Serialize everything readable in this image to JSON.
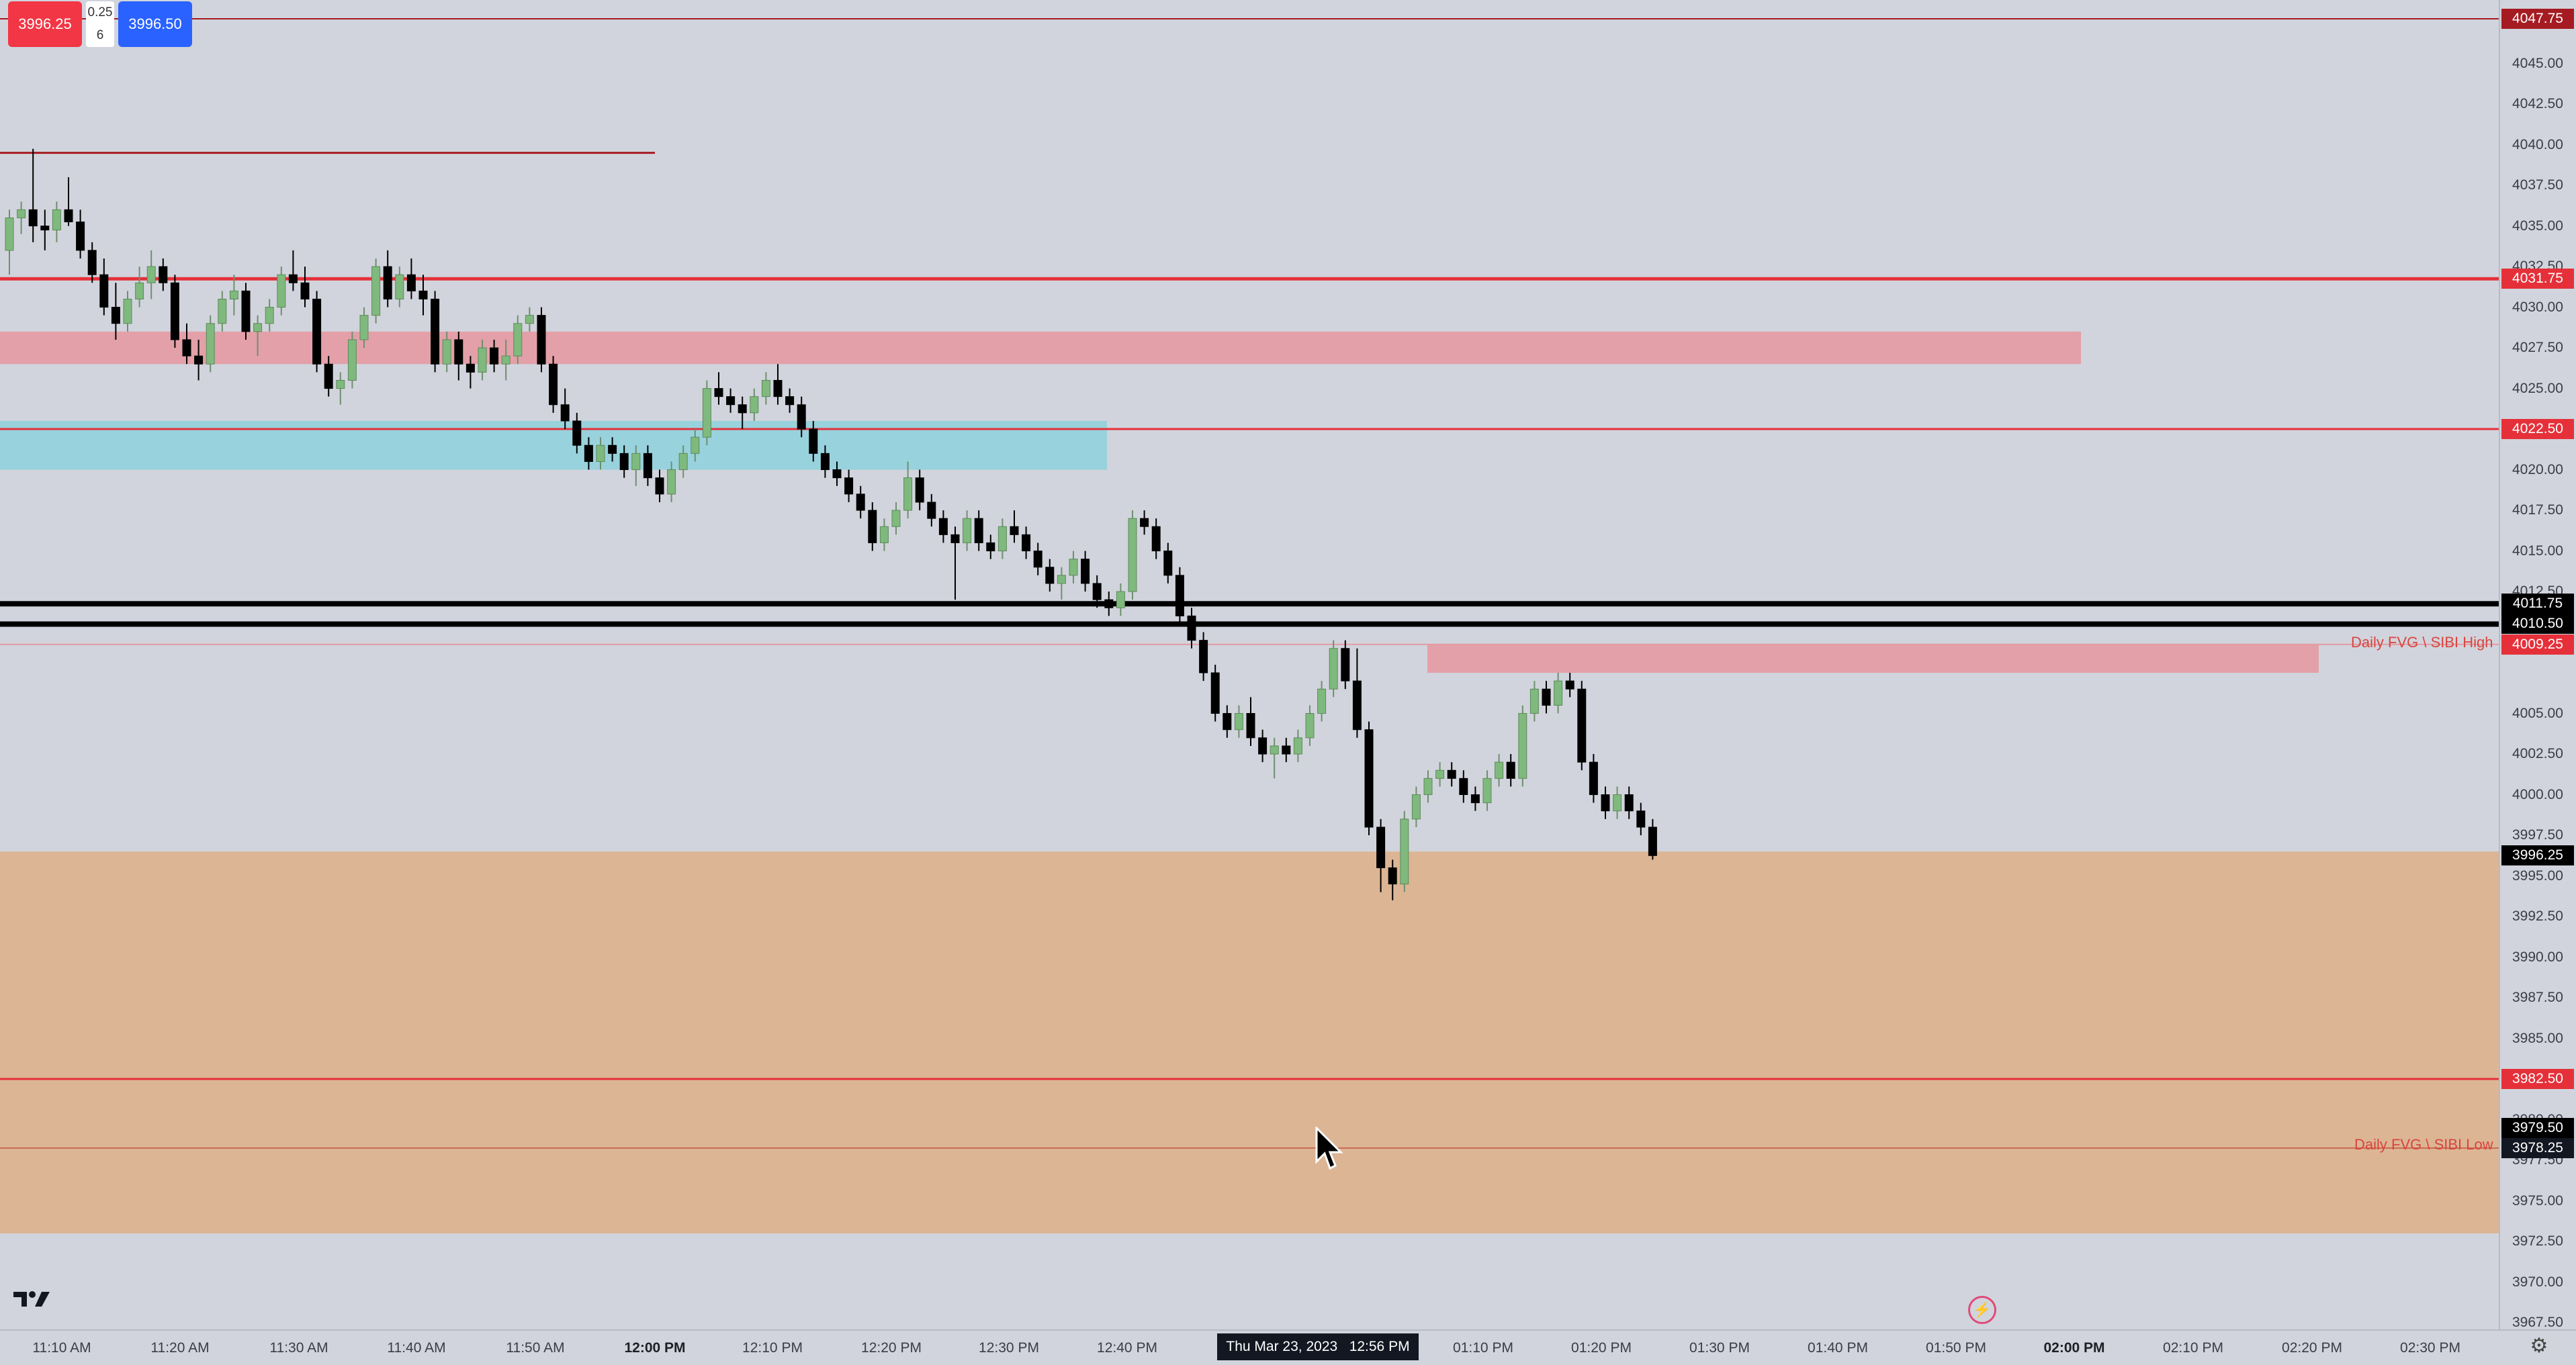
{
  "toolbar": {
    "sell_price": "3996.25",
    "buy_price": "3996.50",
    "spread_top": "0.25",
    "spread_bottom": "6"
  },
  "price_axis": {
    "ticks": [
      "4045.00",
      "4042.50",
      "4040.00",
      "4037.50",
      "4035.00",
      "4032.50",
      "4030.00",
      "4027.50",
      "4025.00",
      "4020.00",
      "4017.50",
      "4015.00",
      "4012.50",
      "4005.00",
      "4002.50",
      "4000.00",
      "3997.50",
      "3995.00",
      "3992.50",
      "3990.00",
      "3987.50",
      "3985.00",
      "3980.00",
      "3977.50",
      "3975.00",
      "3972.50",
      "3970.00",
      "3967.50"
    ],
    "labels": [
      {
        "text": "4047.75",
        "color": "#a61b22"
      },
      {
        "text": "4031.75",
        "color": "#e5303a"
      },
      {
        "text": "4022.50",
        "color": "#e5303a"
      },
      {
        "text": "4011.75",
        "color": "#000000"
      },
      {
        "text": "4010.50",
        "color": "#000000"
      },
      {
        "text": "4009.25",
        "color": "#e5303a"
      },
      {
        "text": "3996.25",
        "color": "#000000"
      },
      {
        "text": "3982.50",
        "color": "#e5303a"
      },
      {
        "text": "3979.50",
        "color": "#000000"
      },
      {
        "text": "3978.25",
        "color": "#131722"
      }
    ]
  },
  "time_axis": {
    "ticks": [
      {
        "text": "11:10 AM",
        "bold": false
      },
      {
        "text": "11:20 AM",
        "bold": false
      },
      {
        "text": "11:30 AM",
        "bold": false
      },
      {
        "text": "11:40 AM",
        "bold": false
      },
      {
        "text": "11:50 AM",
        "bold": false
      },
      {
        "text": "12:00 PM",
        "bold": true
      },
      {
        "text": "12:10 PM",
        "bold": false
      },
      {
        "text": "12:20 PM",
        "bold": false
      },
      {
        "text": "12:30 PM",
        "bold": false
      },
      {
        "text": "12:40 PM",
        "bold": false
      },
      {
        "text": "01:10 PM",
        "bold": false
      },
      {
        "text": "01:20 PM",
        "bold": false
      },
      {
        "text": "01:30 PM",
        "bold": false
      },
      {
        "text": "01:40 PM",
        "bold": false
      },
      {
        "text": "01:50 PM",
        "bold": false
      },
      {
        "text": "02:00 PM",
        "bold": true
      },
      {
        "text": "02:10 PM",
        "bold": false
      },
      {
        "text": "02:20 PM",
        "bold": false
      },
      {
        "text": "02:30 PM",
        "bold": false
      }
    ],
    "crosshair_date": "Thu Mar 23, 2023",
    "crosshair_time": "12:56 PM"
  },
  "annotations": {
    "fvg_high": "Daily FVG \\ SIBI High",
    "fvg_low": "Daily FVG \\ SIBI Low"
  },
  "colors": {
    "background": "#d1d4dc",
    "bull_candle": "#7fb97d",
    "bear_candle": "#000000",
    "red_zone": "#e3a0a8",
    "blue_zone": "#8ed1dc",
    "orange_zone": "#dcb594",
    "red_line": "#e5303a"
  },
  "icons": {
    "logo": "tradingview-logo-icon",
    "lightning": "lightning-icon",
    "settings": "settings-gear-icon",
    "cursor": "mouse-pointer-icon"
  },
  "chart_data": {
    "type": "candlestick",
    "symbol_price_scale": "ES futures 1-minute",
    "ylim": [
      3967.5,
      4047.75
    ],
    "candles": [
      [
        4033.5,
        4036.0,
        4032.0,
        4035.5
      ],
      [
        4035.5,
        4036.5,
        4034.5,
        4036.0
      ],
      [
        4036.0,
        4039.75,
        4034.0,
        4035.0
      ],
      [
        4035.0,
        4036.0,
        4033.5,
        4034.75
      ],
      [
        4034.75,
        4036.5,
        4034.0,
        4036.0
      ],
      [
        4036.0,
        4038.0,
        4035.0,
        4035.25
      ],
      [
        4035.25,
        4036.0,
        4033.0,
        4033.5
      ],
      [
        4033.5,
        4034.0,
        4031.5,
        4032.0
      ],
      [
        4032.0,
        4033.0,
        4029.5,
        4030.0
      ],
      [
        4030.0,
        4031.5,
        4028.0,
        4029.0
      ],
      [
        4029.0,
        4031.0,
        4028.5,
        4030.5
      ],
      [
        4030.5,
        4032.5,
        4030.0,
        4031.5
      ],
      [
        4031.5,
        4033.5,
        4030.5,
        4032.5
      ],
      [
        4032.5,
        4033.0,
        4031.0,
        4031.5
      ],
      [
        4031.5,
        4032.0,
        4027.5,
        4028.0
      ],
      [
        4028.0,
        4029.0,
        4026.5,
        4027.0
      ],
      [
        4027.0,
        4028.0,
        4025.5,
        4026.5
      ],
      [
        4026.5,
        4029.5,
        4026.0,
        4029.0
      ],
      [
        4029.0,
        4031.0,
        4028.5,
        4030.5
      ],
      [
        4030.5,
        4032.0,
        4029.5,
        4031.0
      ],
      [
        4031.0,
        4031.5,
        4028.0,
        4028.5
      ],
      [
        4028.5,
        4029.5,
        4027.0,
        4029.0
      ],
      [
        4029.0,
        4030.5,
        4028.5,
        4030.0
      ],
      [
        4030.0,
        4032.5,
        4029.5,
        4032.0
      ],
      [
        4032.0,
        4033.5,
        4031.0,
        4031.5
      ],
      [
        4031.5,
        4032.5,
        4030.0,
        4030.5
      ],
      [
        4030.5,
        4031.0,
        4026.0,
        4026.5
      ],
      [
        4026.5,
        4027.0,
        4024.5,
        4025.0
      ],
      [
        4025.0,
        4026.0,
        4024.0,
        4025.5
      ],
      [
        4025.5,
        4028.5,
        4025.0,
        4028.0
      ],
      [
        4028.0,
        4030.0,
        4027.5,
        4029.5
      ],
      [
        4029.5,
        4033.0,
        4029.0,
        4032.5
      ],
      [
        4032.5,
        4033.5,
        4030.0,
        4030.5
      ],
      [
        4030.5,
        4032.5,
        4030.0,
        4032.0
      ],
      [
        4032.0,
        4033.0,
        4030.5,
        4031.0
      ],
      [
        4031.0,
        4032.0,
        4029.5,
        4030.5
      ],
      [
        4030.5,
        4031.0,
        4026.0,
        4026.5
      ],
      [
        4026.5,
        4028.5,
        4026.0,
        4028.0
      ],
      [
        4028.0,
        4028.5,
        4025.5,
        4026.5
      ],
      [
        4026.5,
        4027.0,
        4025.0,
        4026.0
      ],
      [
        4026.0,
        4028.0,
        4025.5,
        4027.5
      ],
      [
        4027.5,
        4028.0,
        4026.0,
        4026.5
      ],
      [
        4026.5,
        4028.0,
        4025.5,
        4027.0
      ],
      [
        4027.0,
        4029.5,
        4026.5,
        4029.0
      ],
      [
        4029.0,
        4030.0,
        4028.5,
        4029.5
      ],
      [
        4029.5,
        4030.0,
        4026.0,
        4026.5
      ],
      [
        4026.5,
        4027.0,
        4023.5,
        4024.0
      ],
      [
        4024.0,
        4025.0,
        4022.5,
        4023.0
      ],
      [
        4023.0,
        4023.5,
        4021.0,
        4021.5
      ],
      [
        4021.5,
        4022.0,
        4020.0,
        4020.5
      ],
      [
        4020.5,
        4022.0,
        4020.0,
        4021.5
      ],
      [
        4021.5,
        4022.0,
        4020.5,
        4021.0
      ],
      [
        4021.0,
        4021.5,
        4019.5,
        4020.0
      ],
      [
        4020.0,
        4021.5,
        4019.0,
        4021.0
      ],
      [
        4021.0,
        4021.5,
        4019.0,
        4019.5
      ],
      [
        4019.5,
        4020.0,
        4018.0,
        4018.5
      ],
      [
        4018.5,
        4020.5,
        4018.0,
        4020.0
      ],
      [
        4020.0,
        4021.5,
        4019.5,
        4021.0
      ],
      [
        4021.0,
        4022.5,
        4020.5,
        4022.0
      ],
      [
        4022.0,
        4025.5,
        4021.5,
        4025.0
      ],
      [
        4025.0,
        4026.0,
        4024.0,
        4024.5
      ],
      [
        4024.5,
        4025.0,
        4023.5,
        4024.0
      ],
      [
        4024.0,
        4024.5,
        4022.5,
        4023.5
      ],
      [
        4023.5,
        4025.0,
        4023.0,
        4024.5
      ],
      [
        4024.5,
        4026.0,
        4024.0,
        4025.5
      ],
      [
        4025.5,
        4026.5,
        4024.0,
        4024.5
      ],
      [
        4024.5,
        4025.0,
        4023.5,
        4024.0
      ],
      [
        4024.0,
        4024.5,
        4022.0,
        4022.5
      ],
      [
        4022.5,
        4023.0,
        4020.5,
        4021.0
      ],
      [
        4021.0,
        4021.5,
        4019.5,
        4020.0
      ],
      [
        4020.0,
        4020.5,
        4019.0,
        4019.5
      ],
      [
        4019.5,
        4020.0,
        4018.0,
        4018.5
      ],
      [
        4018.5,
        4019.0,
        4017.0,
        4017.5
      ],
      [
        4017.5,
        4018.0,
        4015.0,
        4015.5
      ],
      [
        4015.5,
        4017.0,
        4015.0,
        4016.5
      ],
      [
        4016.5,
        4018.0,
        4016.0,
        4017.5
      ],
      [
        4017.5,
        4020.5,
        4017.0,
        4019.5
      ],
      [
        4019.5,
        4020.0,
        4017.5,
        4018.0
      ],
      [
        4018.0,
        4018.5,
        4016.5,
        4017.0
      ],
      [
        4017.0,
        4017.5,
        4015.5,
        4016.0
      ],
      [
        4016.0,
        4016.5,
        4012.0,
        4015.5
      ],
      [
        4015.5,
        4017.5,
        4015.0,
        4017.0
      ],
      [
        4017.0,
        4017.5,
        4015.0,
        4015.5
      ],
      [
        4015.5,
        4016.0,
        4014.5,
        4015.0
      ],
      [
        4015.0,
        4017.0,
        4014.5,
        4016.5
      ],
      [
        4016.5,
        4017.5,
        4015.5,
        4016.0
      ],
      [
        4016.0,
        4016.5,
        4014.5,
        4015.0
      ],
      [
        4015.0,
        4015.5,
        4013.5,
        4014.0
      ],
      [
        4014.0,
        4014.5,
        4012.5,
        4013.0
      ],
      [
        4013.0,
        4014.0,
        4012.0,
        4013.5
      ],
      [
        4013.5,
        4015.0,
        4013.0,
        4014.5
      ],
      [
        4014.5,
        4015.0,
        4012.5,
        4013.0
      ],
      [
        4013.0,
        4013.5,
        4011.5,
        4012.0
      ],
      [
        4012.0,
        4012.5,
        4011.0,
        4011.5
      ],
      [
        4011.5,
        4013.0,
        4011.0,
        4012.5
      ],
      [
        4012.5,
        4017.5,
        4012.0,
        4017.0
      ],
      [
        4017.0,
        4017.5,
        4016.0,
        4016.5
      ],
      [
        4016.5,
        4017.0,
        4014.5,
        4015.0
      ],
      [
        4015.0,
        4015.5,
        4013.0,
        4013.5
      ],
      [
        4013.5,
        4014.0,
        4010.5,
        4011.0
      ],
      [
        4011.0,
        4011.5,
        4009.0,
        4009.5
      ],
      [
        4009.5,
        4010.0,
        4007.0,
        4007.5
      ],
      [
        4007.5,
        4008.0,
        4004.5,
        4005.0
      ],
      [
        4005.0,
        4005.5,
        4003.5,
        4004.0
      ],
      [
        4004.0,
        4005.5,
        4003.5,
        4005.0
      ],
      [
        4005.0,
        4006.0,
        4003.0,
        4003.5
      ],
      [
        4003.5,
        4004.0,
        4002.0,
        4002.5
      ],
      [
        4002.5,
        4003.5,
        4001.0,
        4003.0
      ],
      [
        4003.0,
        4003.5,
        4002.0,
        4002.5
      ],
      [
        4002.5,
        4004.0,
        4002.0,
        4003.5
      ],
      [
        4003.5,
        4005.5,
        4003.0,
        4005.0
      ],
      [
        4005.0,
        4007.0,
        4004.5,
        4006.5
      ],
      [
        4006.5,
        4009.5,
        4006.0,
        4009.0
      ],
      [
        4009.0,
        4009.5,
        4006.5,
        4007.0
      ],
      [
        4007.0,
        4009.0,
        4003.5,
        4004.0
      ],
      [
        4004.0,
        4004.5,
        3997.5,
        3998.0
      ],
      [
        3998.0,
        3998.5,
        3994.0,
        3995.5
      ],
      [
        3995.5,
        3996.0,
        3993.5,
        3994.5
      ],
      [
        3994.5,
        3999.0,
        3994.0,
        3998.5
      ],
      [
        3998.5,
        4000.5,
        3998.0,
        4000.0
      ],
      [
        4000.0,
        4001.5,
        3999.5,
        4001.0
      ],
      [
        4001.0,
        4002.0,
        4000.5,
        4001.5
      ],
      [
        4001.5,
        4002.0,
        4000.5,
        4001.0
      ],
      [
        4001.0,
        4001.5,
        3999.5,
        4000.0
      ],
      [
        4000.0,
        4000.5,
        3999.0,
        3999.5
      ],
      [
        3999.5,
        4001.5,
        3999.0,
        4001.0
      ],
      [
        4001.0,
        4002.5,
        4000.5,
        4002.0
      ],
      [
        4002.0,
        4002.5,
        4000.5,
        4001.0
      ],
      [
        4001.0,
        4005.5,
        4000.5,
        4005.0
      ],
      [
        4005.0,
        4007.0,
        4004.5,
        4006.5
      ],
      [
        4006.5,
        4007.0,
        4005.0,
        4005.5
      ],
      [
        4005.5,
        4007.5,
        4005.0,
        4007.0
      ],
      [
        4007.0,
        4007.5,
        4006.0,
        4006.5
      ],
      [
        4006.5,
        4007.0,
        4001.5,
        4002.0
      ],
      [
        4002.0,
        4002.5,
        3999.5,
        4000.0
      ],
      [
        4000.0,
        4000.5,
        3998.5,
        3999.0
      ],
      [
        3999.0,
        4000.5,
        3998.5,
        4000.0
      ],
      [
        4000.0,
        4000.5,
        3998.5,
        3999.0
      ],
      [
        3999.0,
        3999.5,
        3997.5,
        3998.0
      ],
      [
        3998.0,
        3998.5,
        3996.0,
        3996.25
      ]
    ],
    "horizontal_levels": [
      4047.75,
      4039.5,
      4031.75,
      4022.5,
      4011.75,
      4010.5,
      4009.25,
      3982.5,
      3978.25
    ],
    "zones": [
      {
        "from": 4026.5,
        "to": 4028.5,
        "color": "red"
      },
      {
        "from": 4020.0,
        "to": 4023.0,
        "color": "blue"
      },
      {
        "from": 4007.5,
        "to": 4009.25,
        "color": "red"
      },
      {
        "from": 3973.0,
        "to": 3996.5,
        "color": "orange"
      }
    ]
  }
}
